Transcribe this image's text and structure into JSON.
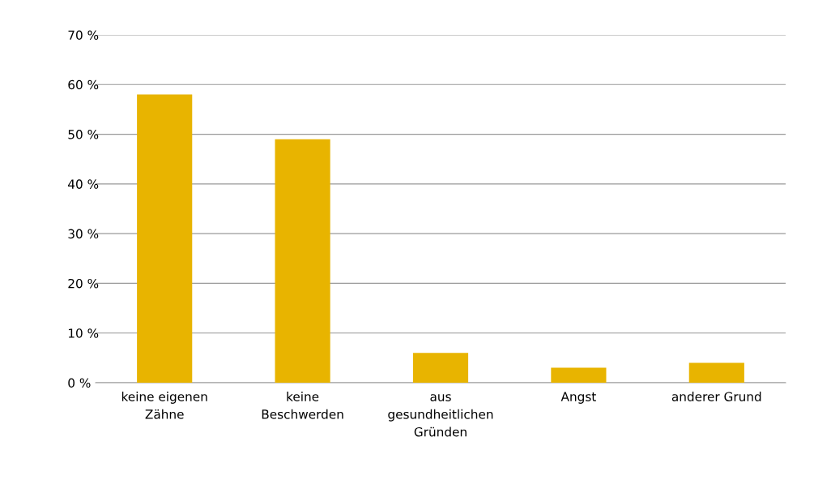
{
  "chart_data": {
    "type": "bar",
    "categories": [
      "keine eigenen\nZähne",
      "keine\nBeschwerden",
      "aus\ngesundheitlichen\nGründen",
      "Angst",
      "anderer Grund"
    ],
    "values": [
      58,
      49,
      6,
      3,
      4
    ],
    "color": "#e8b400",
    "ylim": [
      0,
      70
    ],
    "yticks": [
      {
        "value": 0,
        "label": "0 %"
      },
      {
        "value": 10,
        "label": "10 %"
      },
      {
        "value": 20,
        "label": "20 %"
      },
      {
        "value": 30,
        "label": "30 %"
      },
      {
        "value": 40,
        "label": "40 %"
      },
      {
        "value": 50,
        "label": "50 %"
      },
      {
        "value": 60,
        "label": "60 %"
      },
      {
        "value": 70,
        "label": "70 %"
      }
    ],
    "grid": "y"
  }
}
